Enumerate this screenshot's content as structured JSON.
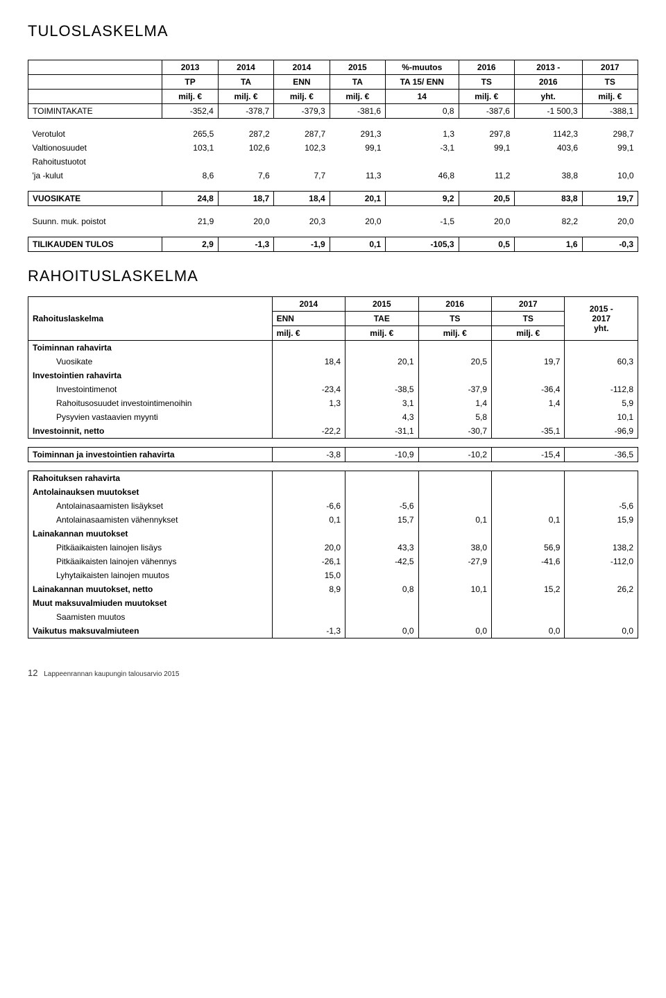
{
  "page_title": "TULOSLASKELMA",
  "tbl1": {
    "headers": [
      [
        "",
        "2013",
        "2014",
        "2014",
        "2015",
        "%-muutos",
        "2016",
        "2013 -",
        "2017"
      ],
      [
        "",
        "TP",
        "TA",
        "ENN",
        "TA",
        "TA 15/ ENN",
        "TS",
        "2016",
        "TS"
      ],
      [
        "",
        "milj. €",
        "milj. €",
        "milj. €",
        "milj. €",
        "14",
        "milj. €",
        "yht.",
        "milj. €"
      ]
    ],
    "toimintakate": [
      "TOIMINTAKATE",
      "-352,4",
      "-378,7",
      "-379,3",
      "-381,6",
      "0,8",
      "-387,6",
      "-1 500,3",
      "-388,1"
    ],
    "rows": [
      [
        "Verotulot",
        "265,5",
        "287,2",
        "287,7",
        "291,3",
        "1,3",
        "297,8",
        "1142,3",
        "298,7"
      ],
      [
        "Valtionosuudet",
        "103,1",
        "102,6",
        "102,3",
        "99,1",
        "-3,1",
        "99,1",
        "403,6",
        "99,1"
      ],
      [
        "Rahoitustuotot",
        "",
        "",
        "",
        "",
        "",
        "",
        "",
        ""
      ],
      [
        "'ja -kulut",
        "8,6",
        "7,6",
        "7,7",
        "11,3",
        "46,8",
        "11,2",
        "38,8",
        "10,0"
      ]
    ],
    "vuosikate": [
      "VUOSIKATE",
      "24,8",
      "18,7",
      "18,4",
      "20,1",
      "9,2",
      "20,5",
      "83,8",
      "19,7"
    ],
    "poistot": [
      "Suunn. muk. poistot",
      "21,9",
      "20,0",
      "20,3",
      "20,0",
      "-1,5",
      "20,0",
      "82,2",
      "20,0"
    ],
    "tilikauden": [
      "TILIKAUDEN TULOS",
      "2,9",
      "-1,3",
      "-1,9",
      "0,1",
      "-105,3",
      "0,5",
      "1,6",
      "-0,3"
    ]
  },
  "rahoituslaskelma_title": "RAHOITUSLASKELMA",
  "tbl2": {
    "headers": [
      [
        "Rahoituslaskelma",
        "2014",
        "2015",
        "2016",
        "2017",
        "2015 -"
      ],
      [
        "",
        "ENN",
        "TAE",
        "TS",
        "TS",
        "2017"
      ],
      [
        "",
        "milj. €",
        "milj. €",
        "milj. €",
        "milj. €",
        "yht."
      ]
    ],
    "sections": [
      {
        "label": "Toiminnan rahavirta",
        "bold": true
      },
      {
        "label": "Vuosikate",
        "indent": 1,
        "vals": [
          "18,4",
          "20,1",
          "20,5",
          "19,7",
          "60,3"
        ]
      },
      {
        "label": "Investointien rahavirta",
        "bold": true
      },
      {
        "label": "Investointimenot",
        "indent": 1,
        "vals": [
          "-23,4",
          "-38,5",
          "-37,9",
          "-36,4",
          "-112,8"
        ]
      },
      {
        "label": "Rahoitusosuudet investointimenoihin",
        "indent": 1,
        "vals": [
          "1,3",
          "3,1",
          "1,4",
          "1,4",
          "5,9"
        ]
      },
      {
        "label": "Pysyvien vastaavien myynti",
        "indent": 1,
        "vals": [
          "",
          "4,3",
          "5,8",
          "",
          "10,1"
        ]
      },
      {
        "label": "Investoinnit, netto",
        "bold": true,
        "vals": [
          "-22,2",
          "-31,1",
          "-30,7",
          "-35,1",
          "-96,9"
        ]
      }
    ],
    "toiminta_inv": {
      "label": "Toiminnan ja investointien rahavirta",
      "vals": [
        "-3,8",
        "-10,9",
        "-10,2",
        "-15,4",
        "-36,5"
      ]
    },
    "rahoituksen": [
      {
        "label": "Rahoituksen rahavirta",
        "bold": true
      },
      {
        "label": "Antolainauksen muutokset",
        "bold": true
      },
      {
        "label": "Antolainasaamisten lisäykset",
        "indent": 1,
        "vals": [
          "-6,6",
          "-5,6",
          "",
          "",
          "-5,6"
        ]
      },
      {
        "label": "Antolainasaamisten vähennykset",
        "indent": 1,
        "vals": [
          "0,1",
          "15,7",
          "0,1",
          "0,1",
          "15,9"
        ]
      },
      {
        "label": "Lainakannan muutokset",
        "bold": true
      },
      {
        "label": "Pitkäaikaisten lainojen lisäys",
        "indent": 1,
        "vals": [
          "20,0",
          "43,3",
          "38,0",
          "56,9",
          "138,2"
        ]
      },
      {
        "label": "Pitkäaikaisten lainojen vähennys",
        "indent": 1,
        "vals": [
          "-26,1",
          "-42,5",
          "-27,9",
          "-41,6",
          "-112,0"
        ]
      },
      {
        "label": "Lyhytaikaisten lainojen muutos",
        "indent": 1,
        "vals": [
          "15,0",
          "",
          "",
          "",
          ""
        ]
      },
      {
        "label": "Lainakannan muutokset, netto",
        "bold": true,
        "vals": [
          "8,9",
          "0,8",
          "10,1",
          "15,2",
          "26,2"
        ]
      },
      {
        "label": "Muut maksuvalmiuden muutokset",
        "bold": true
      },
      {
        "label": "Saamisten muutos",
        "indent": 1
      },
      {
        "label": "Vaikutus maksuvalmiuteen",
        "bold": true,
        "vals": [
          "-1,3",
          "0,0",
          "0,0",
          "0,0",
          "0,0"
        ]
      }
    ]
  },
  "footer": {
    "page": "12",
    "text": "Lappeenrannan kaupungin talousarvio 2015"
  }
}
